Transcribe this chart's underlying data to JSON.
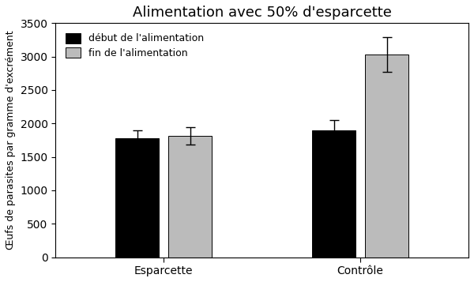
{
  "title": "Alimentation avec 50% d'esparcette",
  "ylabel": "Œufs de parasites par gramme d'excrément",
  "groups": [
    "Esparcette",
    "Contrôle"
  ],
  "series": [
    {
      "label": "début de l'alimentation",
      "color": "#000000",
      "values": [
        1775,
        1900
      ]
    },
    {
      "label": "fin de l'alimentation",
      "color": "#bbbbbb",
      "values": [
        1820,
        3030
      ]
    }
  ],
  "errors": [
    [
      120,
      150
    ],
    [
      130,
      260
    ]
  ],
  "ylim": [
    0,
    3500
  ],
  "yticks": [
    0,
    500,
    1000,
    1500,
    2000,
    2500,
    3000,
    3500
  ],
  "bar_width": 0.22,
  "group_centers": [
    1.0,
    2.0
  ],
  "bar_gap": 0.05,
  "xlim": [
    0.45,
    2.55
  ],
  "title_fontsize": 13,
  "label_fontsize": 9,
  "tick_fontsize": 10,
  "legend_fontsize": 9,
  "bg_color": "#ffffff"
}
